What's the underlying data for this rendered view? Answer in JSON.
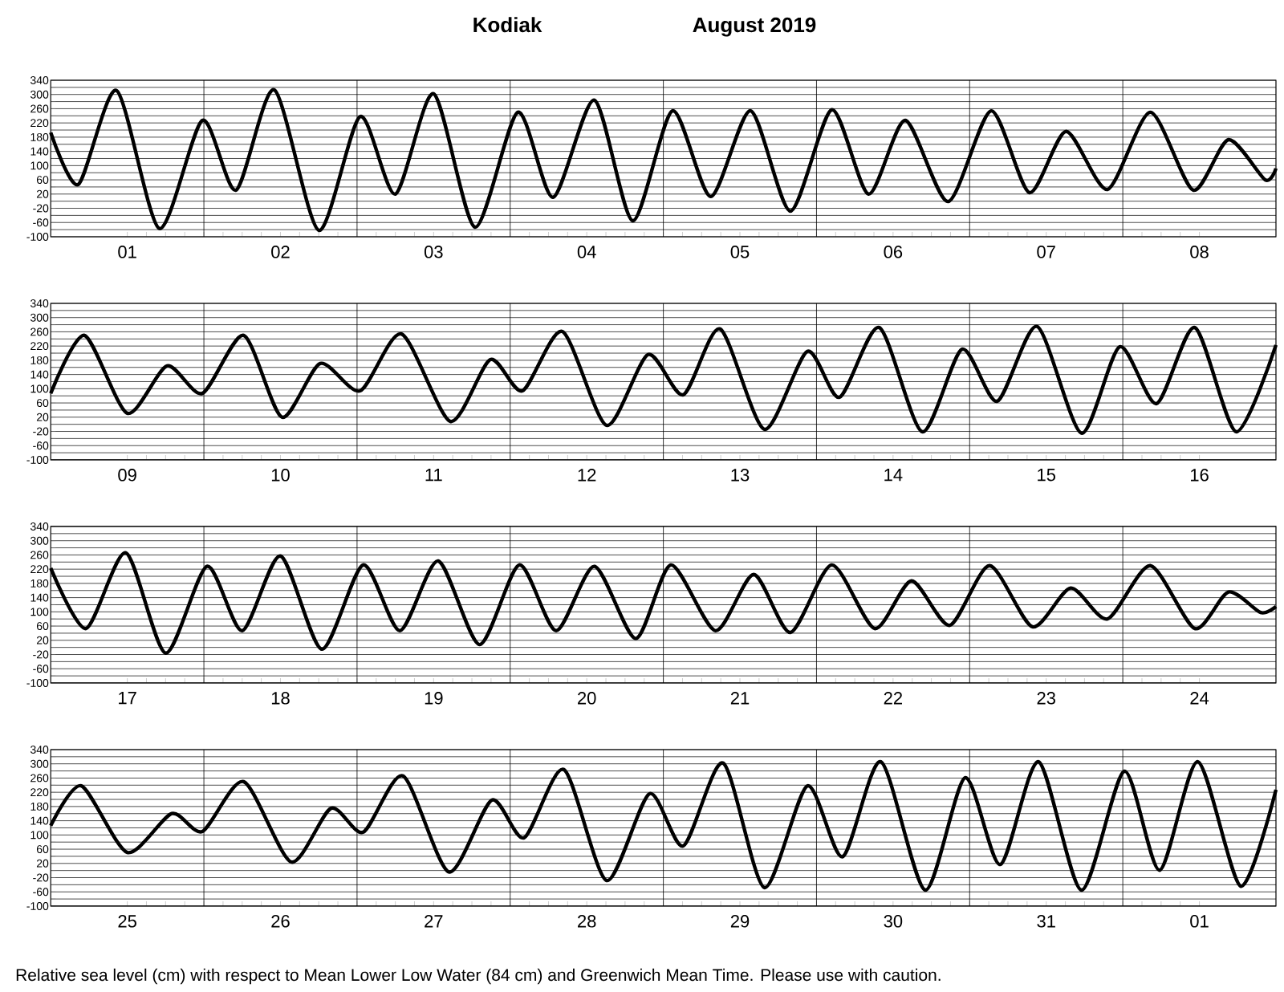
{
  "chart_data": [
    {
      "type": "line",
      "title": "Kodiak",
      "subtitle": "August 2019",
      "xlim": [
        "2019-08-01T00:00",
        "2019-08-09T00:00"
      ],
      "ylim": [
        -100,
        340
      ],
      "xticks": [
        {
          "value": "2019-08-01T12:00",
          "label": "01"
        },
        {
          "value": "2019-08-02T12:00",
          "label": "02"
        },
        {
          "value": "2019-08-03T12:00",
          "label": "03"
        },
        {
          "value": "2019-08-04T12:00",
          "label": "04"
        },
        {
          "value": "2019-08-05T12:00",
          "label": "05"
        },
        {
          "value": "2019-08-06T12:00",
          "label": "06"
        },
        {
          "value": "2019-08-07T12:00",
          "label": "07"
        },
        {
          "value": "2019-08-08T12:00",
          "label": "08"
        }
      ],
      "yticks": [
        -100,
        {
          "value": -80,
          "label": null
        },
        -60,
        {
          "value": -40,
          "label": null
        },
        -20,
        {
          "value": 0,
          "label": null
        },
        20,
        {
          "value": 40,
          "label": null
        },
        60,
        {
          "value": 80,
          "label": null
        },
        100,
        {
          "value": 120,
          "label": null
        },
        140,
        {
          "value": 160,
          "label": null
        },
        180,
        {
          "value": 200,
          "label": null
        },
        220,
        {
          "value": 240,
          "label": null
        },
        260,
        {
          "value": 280,
          "label": null
        },
        300,
        {
          "value": 320,
          "label": null
        },
        340
      ],
      "grid": "y",
      "marker": "none",
      "line_style": "solid",
      "ref_lines": [
        {
          "axis": "x",
          "value": "2019-08-02T00:00"
        },
        {
          "axis": "x",
          "value": "2019-08-03T00:00"
        },
        {
          "axis": "x",
          "value": "2019-08-04T00:00"
        },
        {
          "axis": "x",
          "value": "2019-08-05T00:00"
        },
        {
          "axis": "x",
          "value": "2019-08-06T00:00"
        },
        {
          "axis": "x",
          "value": "2019-08-07T00:00"
        },
        {
          "axis": "x",
          "value": "2019-08-08T00:00"
        }
      ],
      "series": [
        {
          "color": "#000000",
          "x": [
            "2019-08-01T00:00",
            "2019-08-01T04:19",
            "2019-08-01T10:19",
            "2019-08-01T17:02",
            "2019-08-01T23:46",
            "2019-08-02T05:02",
            "2019-08-02T11:02",
            "2019-08-02T18:00",
            "2019-08-03T00:29",
            "2019-08-03T06:00",
            "2019-08-03T12:00",
            "2019-08-03T18:29",
            "2019-08-04T01:12",
            "2019-08-04T06:43",
            "2019-08-04T13:12",
            "2019-08-04T19:12",
            "2019-08-05T01:26",
            "2019-08-05T07:26",
            "2019-08-05T13:41",
            "2019-08-05T19:55",
            "2019-08-06T02:24",
            "2019-08-06T08:10",
            "2019-08-06T13:55",
            "2019-08-06T20:38",
            "2019-08-07T03:22",
            "2019-08-07T09:22",
            "2019-08-07T15:07",
            "2019-08-07T21:36",
            "2019-08-08T04:19",
            "2019-08-08T11:02",
            "2019-08-08T16:34",
            "2019-08-08T22:19",
            "2019-08-09T00:00"
          ],
          "values": [
            193,
            47,
            311,
            -77,
            227,
            31,
            313,
            -82,
            238,
            20,
            302,
            -73,
            250,
            11,
            284,
            -55,
            254,
            13,
            254,
            -28,
            257,
            20,
            227,
            -1,
            254,
            24,
            196,
            33,
            250,
            31,
            173,
            60,
            92
          ]
        }
      ]
    },
    {
      "type": "line",
      "xlim": [
        "2019-08-09T00:00",
        "2019-08-17T00:00"
      ],
      "ylim": [
        -100,
        340
      ],
      "xticks": [
        {
          "value": "2019-08-09T12:00",
          "label": "09"
        },
        {
          "value": "2019-08-10T12:00",
          "label": "10"
        },
        {
          "value": "2019-08-11T12:00",
          "label": "11"
        },
        {
          "value": "2019-08-12T12:00",
          "label": "12"
        },
        {
          "value": "2019-08-13T12:00",
          "label": "13"
        },
        {
          "value": "2019-08-14T12:00",
          "label": "14"
        },
        {
          "value": "2019-08-15T12:00",
          "label": "15"
        },
        {
          "value": "2019-08-16T12:00",
          "label": "16"
        }
      ],
      "yticks": [
        -100,
        {
          "value": -80,
          "label": null
        },
        -60,
        {
          "value": -40,
          "label": null
        },
        -20,
        {
          "value": 0,
          "label": null
        },
        20,
        {
          "value": 40,
          "label": null
        },
        60,
        {
          "value": 80,
          "label": null
        },
        100,
        {
          "value": 120,
          "label": null
        },
        140,
        {
          "value": 160,
          "label": null
        },
        180,
        {
          "value": 200,
          "label": null
        },
        220,
        {
          "value": 240,
          "label": null
        },
        260,
        {
          "value": 280,
          "label": null
        },
        300,
        {
          "value": 320,
          "label": null
        },
        340
      ],
      "grid": "y",
      "marker": "none",
      "line_style": "solid",
      "ref_lines": [
        {
          "axis": "x",
          "value": "2019-08-10T00:00"
        },
        {
          "axis": "x",
          "value": "2019-08-11T00:00"
        },
        {
          "axis": "x",
          "value": "2019-08-12T00:00"
        },
        {
          "axis": "x",
          "value": "2019-08-13T00:00"
        },
        {
          "axis": "x",
          "value": "2019-08-14T00:00"
        },
        {
          "axis": "x",
          "value": "2019-08-15T00:00"
        },
        {
          "axis": "x",
          "value": "2019-08-16T00:00"
        }
      ],
      "series": [
        {
          "color": "#000000",
          "x": [
            "2019-08-09T00:00",
            "2019-08-09T05:17",
            "2019-08-09T12:00",
            "2019-08-09T18:14",
            "2019-08-09T23:46",
            "2019-08-10T06:14",
            "2019-08-10T12:14",
            "2019-08-10T18:14",
            "2019-08-11T00:29",
            "2019-08-11T06:58",
            "2019-08-11T14:38",
            "2019-08-11T20:53",
            "2019-08-12T01:55",
            "2019-08-12T08:10",
            "2019-08-12T15:07",
            "2019-08-12T21:36",
            "2019-08-13T03:07",
            "2019-08-13T08:53",
            "2019-08-13T15:50",
            "2019-08-13T22:34",
            "2019-08-14T03:36",
            "2019-08-14T09:50",
            "2019-08-14T16:34",
            "2019-08-14T22:48",
            "2019-08-15T04:19",
            "2019-08-15T10:34",
            "2019-08-15T17:31",
            "2019-08-15T23:31",
            "2019-08-16T05:17",
            "2019-08-16T11:17",
            "2019-08-16T17:46",
            "2019-08-17T00:00"
          ],
          "values": [
            87,
            250,
            31,
            164,
            87,
            250,
            20,
            171,
            94,
            254,
            8,
            182,
            94,
            261,
            -3,
            196,
            83,
            268,
            -14,
            205,
            76,
            272,
            -21,
            211,
            65,
            275,
            -25,
            218,
            58,
            272,
            -21,
            223
          ]
        }
      ]
    },
    {
      "type": "line",
      "xlim": [
        "2019-08-17T00:00",
        "2019-08-25T00:00"
      ],
      "ylim": [
        -100,
        340
      ],
      "xticks": [
        {
          "value": "2019-08-17T12:00",
          "label": "17"
        },
        {
          "value": "2019-08-18T12:00",
          "label": "18"
        },
        {
          "value": "2019-08-19T12:00",
          "label": "19"
        },
        {
          "value": "2019-08-20T12:00",
          "label": "20"
        },
        {
          "value": "2019-08-21T12:00",
          "label": "21"
        },
        {
          "value": "2019-08-22T12:00",
          "label": "22"
        },
        {
          "value": "2019-08-23T12:00",
          "label": "23"
        },
        {
          "value": "2019-08-24T12:00",
          "label": "24"
        }
      ],
      "yticks": [
        -100,
        {
          "value": -80,
          "label": null
        },
        -60,
        {
          "value": -40,
          "label": null
        },
        -20,
        {
          "value": 0,
          "label": null
        },
        20,
        {
          "value": 40,
          "label": null
        },
        60,
        {
          "value": 80,
          "label": null
        },
        100,
        {
          "value": 120,
          "label": null
        },
        140,
        {
          "value": 160,
          "label": null
        },
        180,
        {
          "value": 200,
          "label": null
        },
        220,
        {
          "value": 240,
          "label": null
        },
        260,
        {
          "value": 280,
          "label": null
        },
        300,
        {
          "value": 320,
          "label": null
        },
        340
      ],
      "grid": "y",
      "marker": "none",
      "line_style": "solid",
      "ref_lines": [
        {
          "axis": "x",
          "value": "2019-08-18T00:00"
        },
        {
          "axis": "x",
          "value": "2019-08-19T00:00"
        },
        {
          "axis": "x",
          "value": "2019-08-20T00:00"
        },
        {
          "axis": "x",
          "value": "2019-08-21T00:00"
        },
        {
          "axis": "x",
          "value": "2019-08-22T00:00"
        },
        {
          "axis": "x",
          "value": "2019-08-23T00:00"
        },
        {
          "axis": "x",
          "value": "2019-08-24T00:00"
        }
      ],
      "series": [
        {
          "color": "#000000",
          "x": [
            "2019-08-17T00:00",
            "2019-08-17T05:31",
            "2019-08-17T11:46",
            "2019-08-17T18:00",
            "2019-08-18T00:29",
            "2019-08-18T06:00",
            "2019-08-18T12:00",
            "2019-08-18T18:29",
            "2019-08-19T00:58",
            "2019-08-19T06:43",
            "2019-08-19T12:43",
            "2019-08-19T19:12",
            "2019-08-20T01:26",
            "2019-08-20T07:12",
            "2019-08-20T13:12",
            "2019-08-20T19:41",
            "2019-08-21T01:12",
            "2019-08-21T08:10",
            "2019-08-21T14:10",
            "2019-08-21T19:55",
            "2019-08-22T02:24",
            "2019-08-22T09:07",
            "2019-08-22T14:53",
            "2019-08-22T20:53",
            "2019-08-23T03:07",
            "2019-08-23T09:50",
            "2019-08-23T15:50",
            "2019-08-23T21:36",
            "2019-08-24T04:19",
            "2019-08-24T11:17",
            "2019-08-24T16:34",
            "2019-08-24T21:36",
            "2019-08-25T00:00"
          ],
          "values": [
            223,
            53,
            266,
            -16,
            228,
            47,
            257,
            -5,
            232,
            47,
            243,
            8,
            232,
            47,
            228,
            25,
            232,
            47,
            205,
            42,
            232,
            53,
            187,
            62,
            230,
            58,
            167,
            80,
            230,
            53,
            156,
            98,
            115
          ]
        }
      ]
    },
    {
      "type": "line",
      "xlim": [
        "2019-08-25T00:00",
        "2019-09-02T00:00"
      ],
      "ylim": [
        -100,
        340
      ],
      "xticks": [
        {
          "value": "2019-08-25T12:00",
          "label": "25"
        },
        {
          "value": "2019-08-26T12:00",
          "label": "26"
        },
        {
          "value": "2019-08-27T12:00",
          "label": "27"
        },
        {
          "value": "2019-08-28T12:00",
          "label": "28"
        },
        {
          "value": "2019-08-29T12:00",
          "label": "29"
        },
        {
          "value": "2019-08-30T12:00",
          "label": "30"
        },
        {
          "value": "2019-08-31T12:00",
          "label": "31"
        },
        {
          "value": "2019-09-01T12:00",
          "label": "01"
        }
      ],
      "yticks": [
        -100,
        {
          "value": -80,
          "label": null
        },
        -60,
        {
          "value": -40,
          "label": null
        },
        -20,
        {
          "value": 0,
          "label": null
        },
        20,
        {
          "value": 40,
          "label": null
        },
        60,
        {
          "value": 80,
          "label": null
        },
        100,
        {
          "value": 120,
          "label": null
        },
        140,
        {
          "value": 160,
          "label": null
        },
        180,
        {
          "value": 200,
          "label": null
        },
        220,
        {
          "value": 240,
          "label": null
        },
        260,
        {
          "value": 280,
          "label": null
        },
        300,
        {
          "value": 320,
          "label": null
        },
        340
      ],
      "grid": "y",
      "marker": "none",
      "line_style": "solid",
      "ref_lines": [
        {
          "axis": "x",
          "value": "2019-08-26T00:00"
        },
        {
          "axis": "x",
          "value": "2019-08-27T00:00"
        },
        {
          "axis": "x",
          "value": "2019-08-28T00:00"
        },
        {
          "axis": "x",
          "value": "2019-08-29T00:00"
        },
        {
          "axis": "x",
          "value": "2019-08-30T00:00"
        },
        {
          "axis": "x",
          "value": "2019-08-31T00:00"
        },
        {
          "axis": "x",
          "value": "2019-09-01T00:00"
        }
      ],
      "annotations": [
        "Relative sea level (cm) with respect to Mean Lower Low Water (84 cm) and Greenwich Mean Time. Please use with caution."
      ],
      "series": [
        {
          "color": "#000000",
          "x": [
            "2019-08-25T00:00",
            "2019-08-25T04:48",
            "2019-08-25T12:00",
            "2019-08-25T18:58",
            "2019-08-25T23:46",
            "2019-08-26T06:14",
            "2019-08-26T13:41",
            "2019-08-26T19:55",
            "2019-08-27T00:58",
            "2019-08-27T07:12",
            "2019-08-27T14:24",
            "2019-08-27T21:07",
            "2019-08-28T02:10",
            "2019-08-28T08:24",
            "2019-08-28T15:07",
            "2019-08-28T21:50",
            "2019-08-29T03:07",
            "2019-08-29T09:22",
            "2019-08-29T15:50",
            "2019-08-29T22:34",
            "2019-08-30T04:05",
            "2019-08-30T10:05",
            "2019-08-30T17:02",
            "2019-08-30T23:17",
            "2019-08-31T04:48",
            "2019-08-31T10:48",
            "2019-08-31T17:31",
            "2019-09-01T00:14",
            "2019-09-01T05:46",
            "2019-09-01T11:46",
            "2019-09-01T18:29",
            "2019-09-02T00:00"
          ],
          "values": [
            126,
            238,
            51,
            160,
            110,
            250,
            24,
            175,
            108,
            266,
            -4,
            198,
            92,
            284,
            -28,
            216,
            69,
            302,
            -48,
            238,
            39,
            306,
            -55,
            261,
            17,
            306,
            -55,
            279,
            1,
            306,
            -44,
            227
          ]
        }
      ]
    }
  ]
}
